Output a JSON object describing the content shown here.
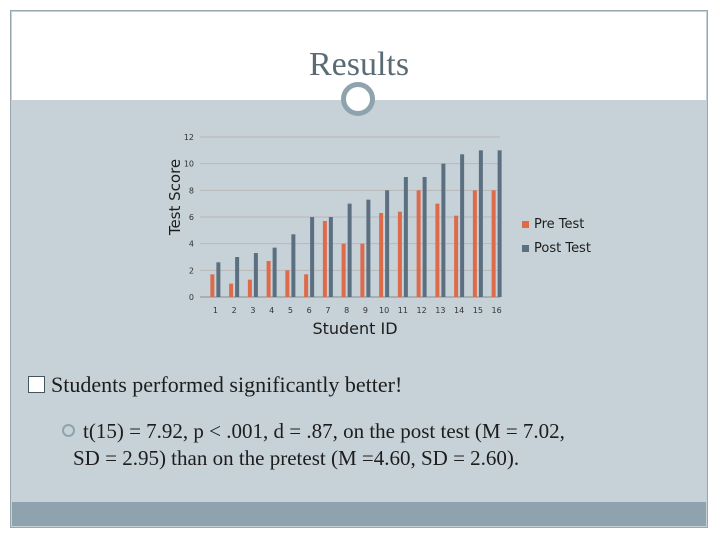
{
  "slide": {
    "title": "Results",
    "bullet_main": "Students performed significantly better!",
    "bullet_sub_line1": "t(15) = 7.92, p < .001, d = .87, on the post test (M = 7.02,",
    "bullet_sub_line2": "SD = 2.95) than on the pretest (M =4.60, SD = 2.60)."
  },
  "colors": {
    "pre": "#dd6b4a",
    "post": "#5b6f80",
    "slide_bg": "#c7d1d8",
    "accent": "#8fa3ae"
  },
  "chart_data": {
    "type": "bar",
    "xlabel": "Student ID",
    "ylabel": "Test Score",
    "ylim": [
      0,
      12
    ],
    "yticks": [
      0,
      2,
      4,
      6,
      8,
      10,
      12
    ],
    "categories": [
      "1",
      "2",
      "3",
      "4",
      "5",
      "6",
      "7",
      "8",
      "9",
      "10",
      "11",
      "12",
      "13",
      "14",
      "15",
      "16"
    ],
    "series": [
      {
        "name": "Pre Test",
        "values": [
          1.7,
          1.0,
          1.3,
          2.7,
          2.0,
          1.7,
          5.7,
          4.0,
          4.0,
          6.3,
          6.4,
          8.0,
          7.0,
          6.1,
          8.0,
          8.0
        ]
      },
      {
        "name": "Post Test",
        "values": [
          2.6,
          3.0,
          3.3,
          3.7,
          4.7,
          6.0,
          6.0,
          7.0,
          7.3,
          8.0,
          9.0,
          9.0,
          10.0,
          10.7,
          11.0,
          11.0
        ]
      }
    ],
    "legend_position": "right"
  }
}
